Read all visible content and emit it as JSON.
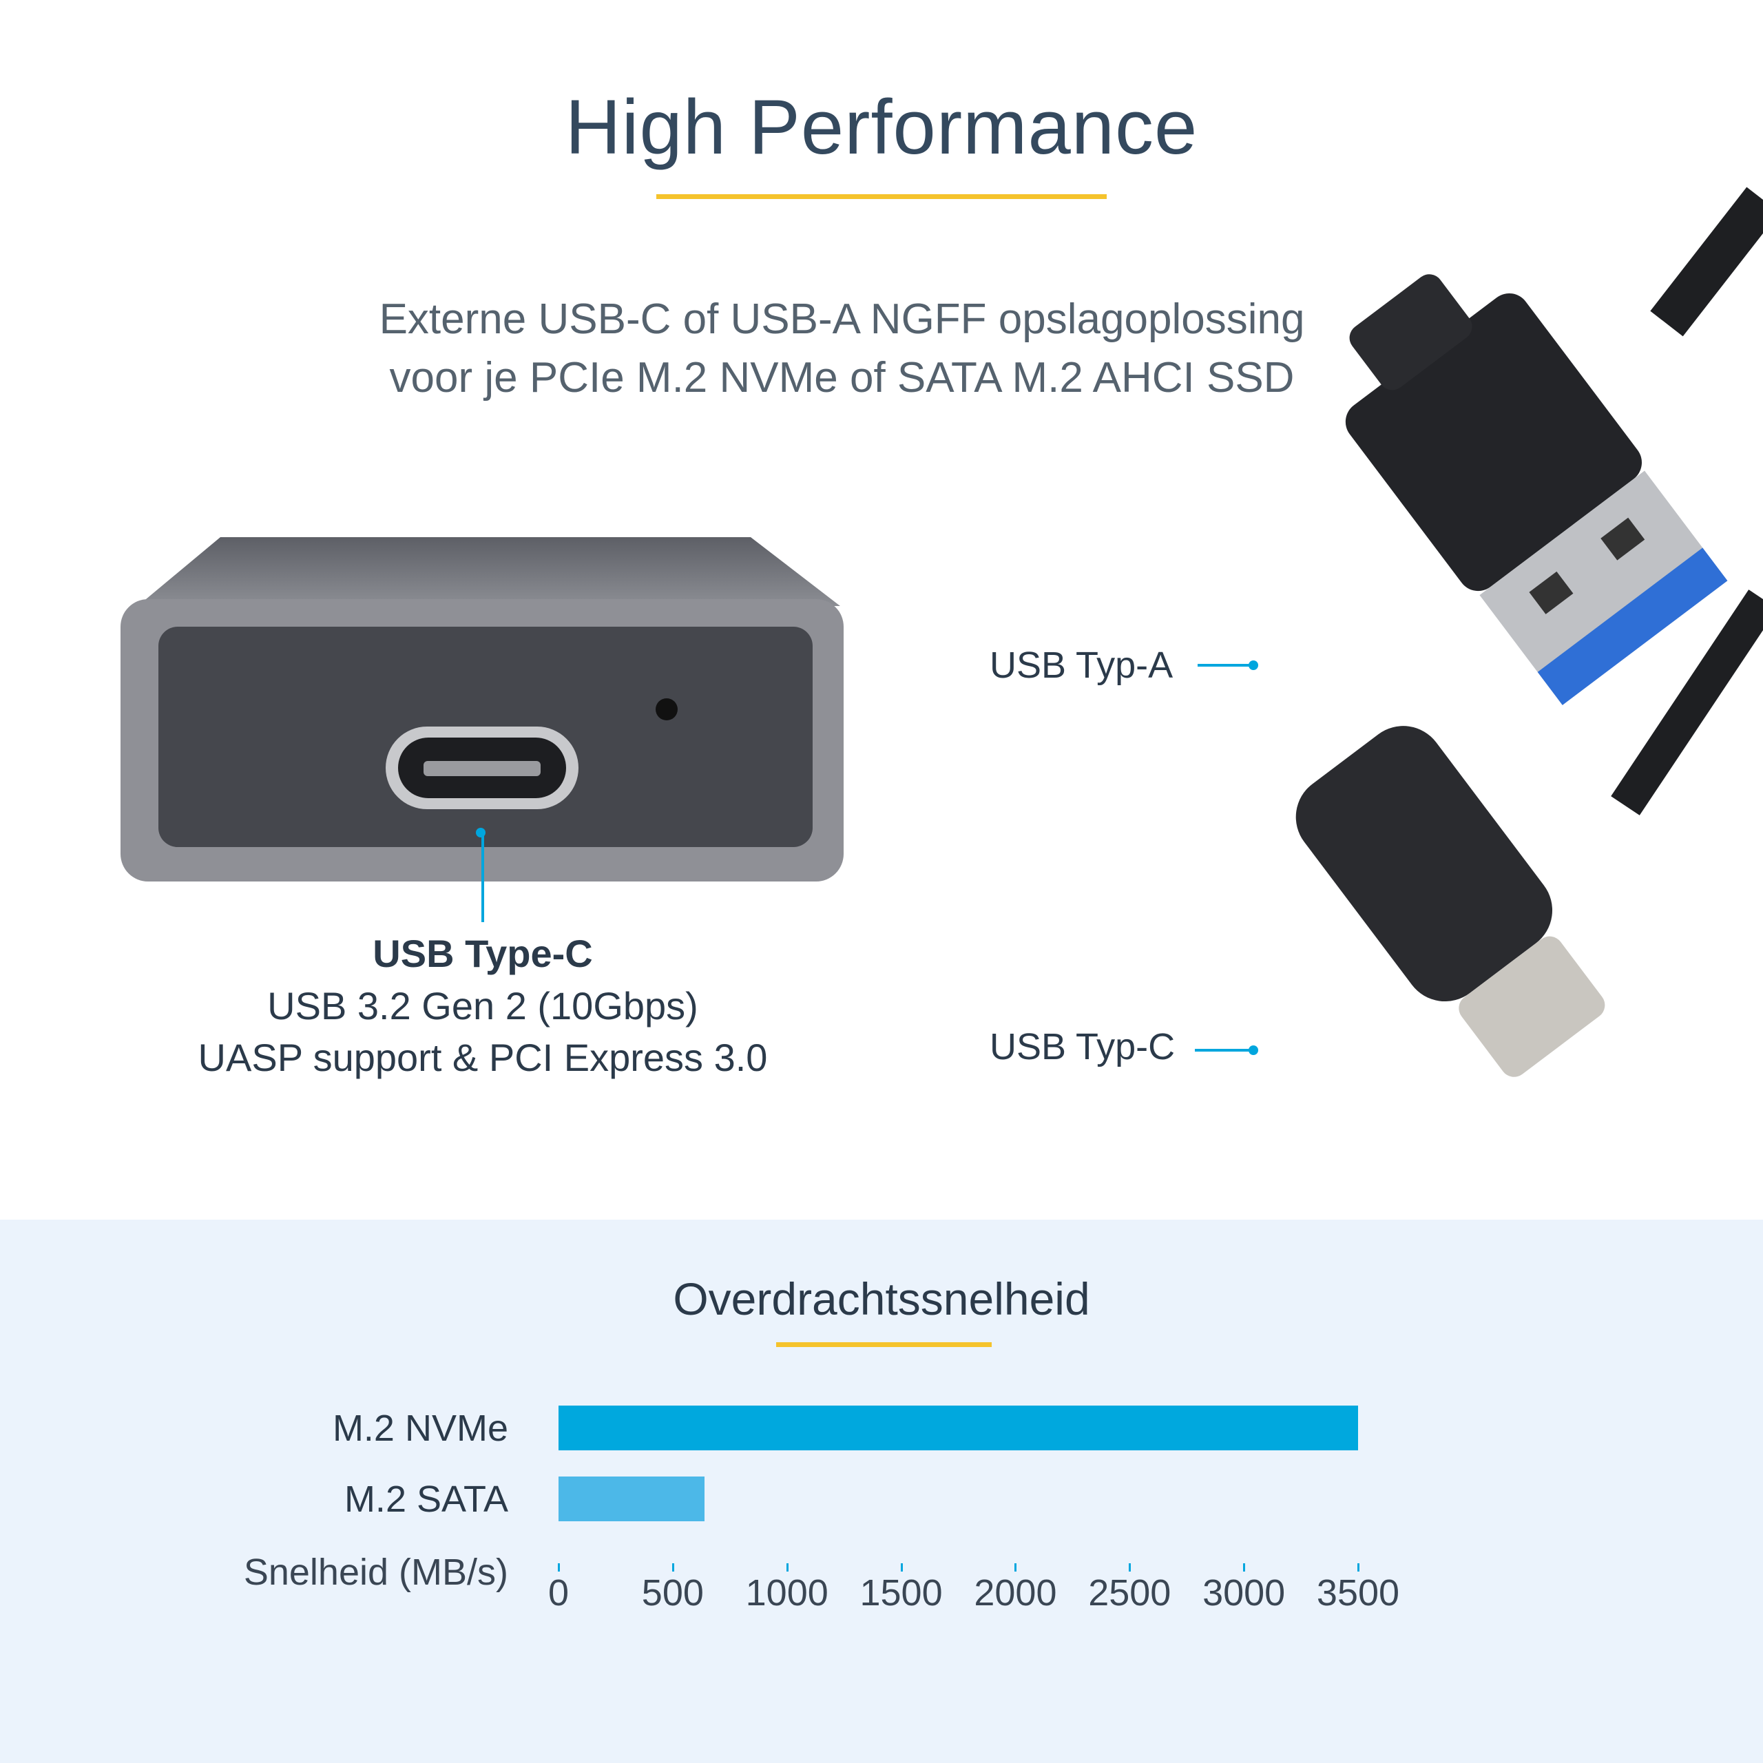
{
  "header": {
    "title": "High Performance",
    "subtitle_line1": "Externe USB-C of USB-A NGFF opslagoplossing",
    "subtitle_line2": "voor je PCIe M.2 NVMe of SATA M.2 AHCI SSD"
  },
  "device": {
    "port_title": "USB Type-C",
    "port_line1": "USB 3.2 Gen 2 (10Gbps)",
    "port_line2": "UASP support & PCI Express 3.0"
  },
  "cables": {
    "usb_a_label": "USB Typ-A",
    "usb_c_label": "USB Typ-C"
  },
  "colors": {
    "accent_yellow": "#f5c32c",
    "callout_blue": "#00a6de",
    "bar_nvme": "#00a8de",
    "bar_sata": "#4cb8e8",
    "section_bg": "#ebf3fc"
  },
  "chart_data": {
    "type": "bar",
    "orientation": "horizontal",
    "title": "Overdrachtssnelheid",
    "xlabel": "Snelheid (MB/s)",
    "categories": [
      "M.2 NVMe",
      "M.2 SATA"
    ],
    "values": [
      3500,
      640
    ],
    "xlim": [
      0,
      3500
    ],
    "ticks": [
      "0",
      "500",
      "1000",
      "1500",
      "2000",
      "2500",
      "3000",
      "3500"
    ],
    "grid": false
  }
}
